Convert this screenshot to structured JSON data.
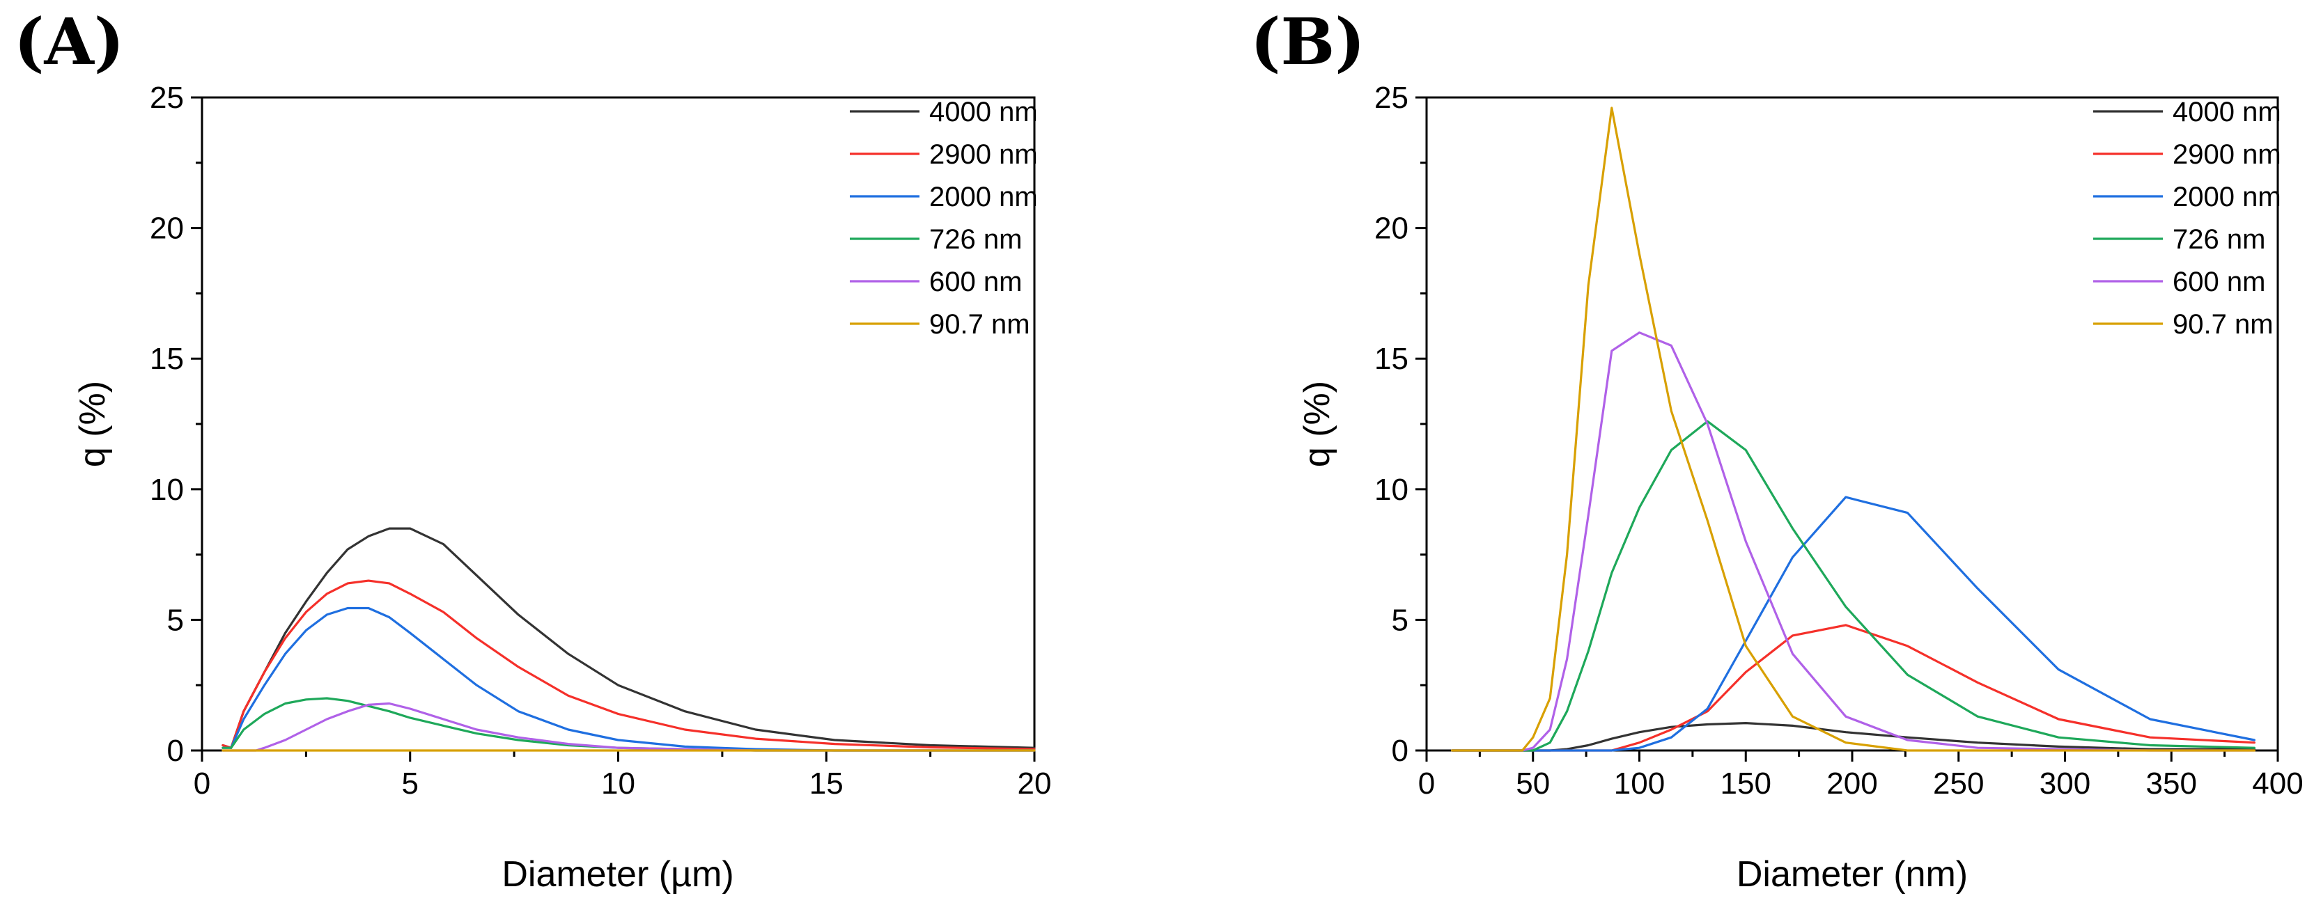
{
  "chart_data": [
    {
      "type": "line",
      "panel_label": "(A)",
      "xlabel": "Diameter (µm)",
      "ylabel": "q (%)",
      "xlim": [
        0,
        20
      ],
      "ylim": [
        0,
        25
      ],
      "xticks": [
        0,
        5,
        10,
        15,
        20
      ],
      "xtick_labels": [
        "0",
        "5",
        "10",
        "15",
        "20"
      ],
      "yticks": [
        0,
        5,
        10,
        15,
        20,
        25
      ],
      "ytick_labels": [
        "0",
        "5",
        "10",
        "15",
        "20",
        "25"
      ],
      "legend_position": "top-right",
      "series": [
        {
          "name": "4000 nm",
          "color": "#333333",
          "x": [
            0.5,
            0.7,
            1.0,
            1.5,
            2.0,
            2.5,
            3.0,
            3.5,
            4.0,
            4.5,
            5.0,
            5.8,
            6.6,
            7.6,
            8.8,
            10.0,
            11.6,
            13.3,
            15.2,
            17.5,
            20.0
          ],
          "y": [
            0.2,
            0.1,
            1.5,
            3.0,
            4.5,
            5.7,
            6.8,
            7.7,
            8.2,
            8.5,
            8.5,
            7.9,
            6.7,
            5.2,
            3.7,
            2.5,
            1.5,
            0.8,
            0.4,
            0.2,
            0.1
          ]
        },
        {
          "name": "2900 nm",
          "color": "#f5302a",
          "x": [
            0.5,
            0.7,
            1.0,
            1.5,
            2.0,
            2.5,
            3.0,
            3.5,
            4.0,
            4.5,
            5.0,
            5.8,
            6.6,
            7.6,
            8.8,
            10.0,
            11.6,
            13.3,
            15.2,
            17.5,
            20.0
          ],
          "y": [
            0.2,
            0.1,
            1.5,
            3.0,
            4.3,
            5.3,
            6.0,
            6.4,
            6.5,
            6.4,
            6.0,
            5.3,
            4.3,
            3.2,
            2.1,
            1.4,
            0.8,
            0.45,
            0.25,
            0.12,
            0.05
          ]
        },
        {
          "name": "2000 nm",
          "color": "#1f6fe0",
          "x": [
            0.5,
            0.7,
            1.0,
            1.5,
            2.0,
            2.5,
            3.0,
            3.5,
            4.0,
            4.5,
            5.0,
            5.8,
            6.6,
            7.6,
            8.8,
            10.0,
            11.6,
            13.3,
            15.2,
            17.5,
            20.0
          ],
          "y": [
            0.1,
            0.1,
            1.2,
            2.5,
            3.7,
            4.6,
            5.2,
            5.45,
            5.45,
            5.1,
            4.5,
            3.5,
            2.5,
            1.5,
            0.8,
            0.4,
            0.15,
            0.05,
            0.0,
            0.0,
            0.0
          ]
        },
        {
          "name": "726 nm",
          "color": "#1ea85a",
          "x": [
            0.5,
            0.7,
            1.0,
            1.5,
            2.0,
            2.5,
            3.0,
            3.5,
            4.0,
            4.5,
            5.0,
            5.8,
            6.6,
            7.6,
            8.8,
            10.0,
            11.6,
            13.3,
            15.2,
            17.5,
            20.0
          ],
          "y": [
            0.1,
            0.1,
            0.8,
            1.4,
            1.8,
            1.95,
            2.0,
            1.9,
            1.7,
            1.5,
            1.25,
            0.95,
            0.65,
            0.4,
            0.2,
            0.1,
            0.05,
            0.0,
            0.0,
            0.0,
            0.0
          ]
        },
        {
          "name": "600 nm",
          "color": "#b061e8",
          "x": [
            0.5,
            1.0,
            1.3,
            1.5,
            2.0,
            2.5,
            3.0,
            3.5,
            4.0,
            4.5,
            5.0,
            5.8,
            6.6,
            7.6,
            8.8,
            10.0,
            11.6,
            13.3,
            15.2,
            17.5,
            20.0
          ],
          "y": [
            0.0,
            0.0,
            0.0,
            0.1,
            0.4,
            0.8,
            1.2,
            1.5,
            1.75,
            1.8,
            1.6,
            1.2,
            0.8,
            0.5,
            0.25,
            0.1,
            0.05,
            0.0,
            0.0,
            0.0,
            0.0
          ]
        },
        {
          "name": "90.7 nm",
          "color": "#d8a000",
          "x": [
            0.5,
            20.0
          ],
          "y": [
            0.0,
            0.0
          ]
        }
      ]
    },
    {
      "type": "line",
      "panel_label": "(B)",
      "xlabel": "Diameter (nm)",
      "ylabel": "q (%)",
      "xlim": [
        0,
        400
      ],
      "ylim": [
        0,
        25
      ],
      "xticks": [
        0,
        50,
        100,
        150,
        200,
        250,
        300,
        350,
        400
      ],
      "xtick_labels": [
        "0",
        "50",
        "100",
        "150",
        "200",
        "250",
        "300",
        "350",
        "400"
      ],
      "yticks": [
        0,
        5,
        10,
        15,
        20,
        25
      ],
      "ytick_labels": [
        "0",
        "5",
        "10",
        "15",
        "20",
        "25"
      ],
      "legend_position": "top-right",
      "series": [
        {
          "name": "4000 nm",
          "color": "#333333",
          "x": [
            12,
            45,
            50,
            58,
            66,
            76,
            87,
            100,
            115,
            132,
            150,
            172,
            197,
            226,
            259,
            297,
            340,
            389
          ],
          "y": [
            0,
            0,
            0,
            0,
            0.05,
            0.2,
            0.45,
            0.7,
            0.9,
            1.0,
            1.05,
            0.95,
            0.7,
            0.5,
            0.3,
            0.15,
            0.05,
            0.05
          ]
        },
        {
          "name": "2900 nm",
          "color": "#f5302a",
          "x": [
            12,
            45,
            50,
            58,
            66,
            76,
            87,
            100,
            115,
            132,
            150,
            172,
            197,
            226,
            259,
            297,
            340,
            389
          ],
          "y": [
            0,
            0,
            0,
            0,
            0,
            0,
            0,
            0.3,
            0.8,
            1.5,
            3.0,
            4.4,
            4.8,
            4.0,
            2.6,
            1.2,
            0.5,
            0.3
          ]
        },
        {
          "name": "2000 nm",
          "color": "#1f6fe0",
          "x": [
            12,
            45,
            50,
            58,
            66,
            76,
            87,
            100,
            115,
            132,
            150,
            172,
            197,
            226,
            259,
            297,
            340,
            389
          ],
          "y": [
            0,
            0,
            0,
            0,
            0,
            0,
            0,
            0.1,
            0.5,
            1.6,
            4.2,
            7.4,
            9.7,
            9.1,
            6.2,
            3.1,
            1.2,
            0.4
          ]
        },
        {
          "name": "726 nm",
          "color": "#1ea85a",
          "x": [
            12,
            45,
            50,
            58,
            66,
            76,
            87,
            100,
            115,
            132,
            150,
            172,
            197,
            226,
            259,
            297,
            340,
            389
          ],
          "y": [
            0,
            0,
            0,
            0.3,
            1.5,
            3.8,
            6.8,
            9.3,
            11.5,
            12.6,
            11.5,
            8.5,
            5.5,
            2.9,
            1.3,
            0.5,
            0.2,
            0.1
          ]
        },
        {
          "name": "600 nm",
          "color": "#b061e8",
          "x": [
            12,
            45,
            50,
            58,
            66,
            76,
            87,
            100,
            115,
            132,
            150,
            172,
            197,
            226,
            259,
            297,
            340,
            389
          ],
          "y": [
            0,
            0,
            0.1,
            0.8,
            3.5,
            9.0,
            15.3,
            16.0,
            15.5,
            12.5,
            8.0,
            3.7,
            1.3,
            0.4,
            0.1,
            0.05,
            0.0,
            0.0
          ]
        },
        {
          "name": "90.7 nm",
          "color": "#d8a000",
          "x": [
            12,
            45,
            50,
            58,
            66,
            76,
            87,
            100,
            115,
            132,
            150,
            172,
            197,
            226,
            259,
            297,
            340,
            389
          ],
          "y": [
            0,
            0,
            0.5,
            2.0,
            7.5,
            17.8,
            24.6,
            19.0,
            13.0,
            8.8,
            4.0,
            1.3,
            0.3,
            0.0,
            0.0,
            0.0,
            0.0,
            0.0
          ]
        }
      ]
    }
  ]
}
